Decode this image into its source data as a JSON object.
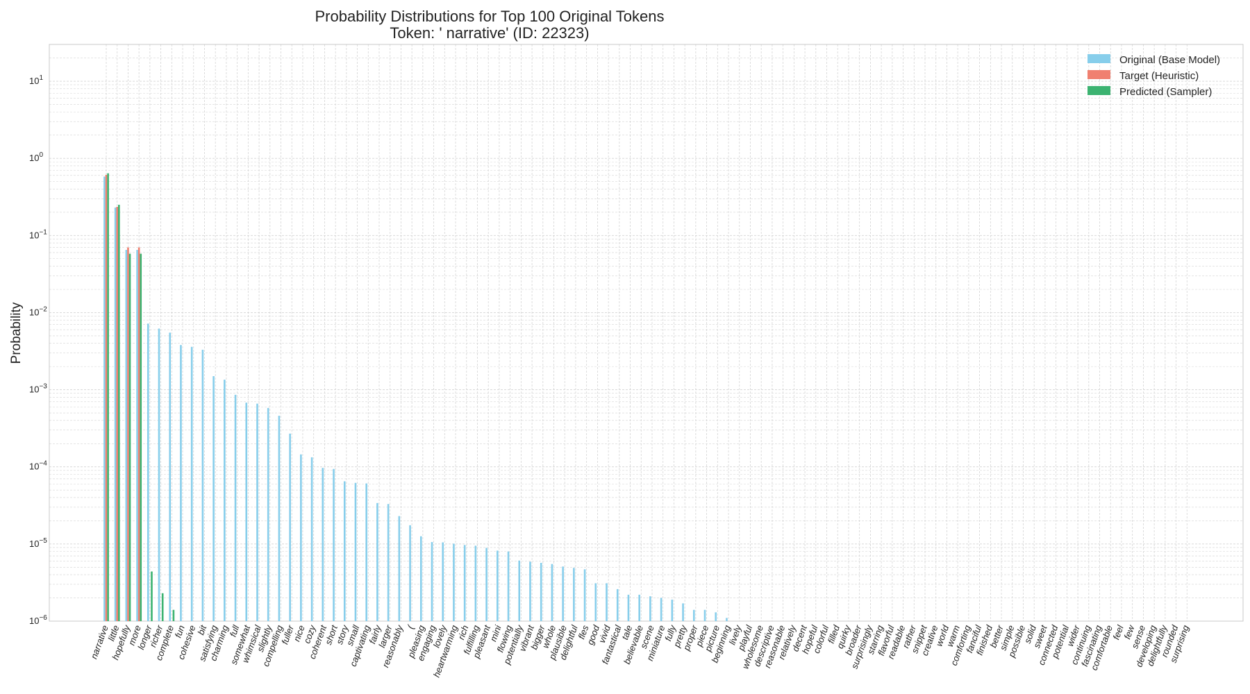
{
  "chart_data": {
    "type": "bar",
    "title": "Probability Distributions for Top 100 Original Tokens",
    "subtitle": "Token: ' narrative' (ID: 22323)",
    "xlabel": "",
    "ylabel": "Probability",
    "yscale": "log",
    "ylim": [
      1e-06,
      30
    ],
    "grid": true,
    "legend_position": "top-right",
    "y_ticks": [
      {
        "value": 1e-06,
        "base": "10",
        "exp": "−6"
      },
      {
        "value": 1e-05,
        "base": "10",
        "exp": "−5"
      },
      {
        "value": 0.0001,
        "base": "10",
        "exp": "−4"
      },
      {
        "value": 0.001,
        "base": "10",
        "exp": "−3"
      },
      {
        "value": 0.01,
        "base": "10",
        "exp": "−2"
      },
      {
        "value": 0.1,
        "base": "10",
        "exp": "−1"
      },
      {
        "value": 1,
        "base": "10",
        "exp": "0"
      },
      {
        "value": 10,
        "base": "10",
        "exp": "1"
      }
    ],
    "categories": [
      "narrative",
      "little",
      "hopefully",
      "more",
      "longer",
      "richer",
      "complete",
      "fun",
      "cohesive",
      "bit",
      "satisfying",
      "charming",
      "full",
      "somewhat",
      "whimsical",
      "slightly",
      "compelling",
      "fuller",
      "nice",
      "cozy",
      "coherent",
      "short",
      "story",
      "small",
      "captivating",
      "fairly",
      "larger",
      "reasonably",
      "(",
      "pleasing",
      "engaging",
      "lovely",
      "heartwarming",
      "rich",
      "fulfilling",
      "pleasant",
      "mini",
      "flowing",
      "potentially",
      "vibrant",
      "bigger",
      "whole",
      "plausible",
      "delightful",
      "fles",
      "good",
      "vivid",
      "fantastical",
      "tale",
      "believable",
      "scene",
      "miniature",
      "fully",
      "pretty",
      "proper",
      "piece",
      "picture",
      "beginning",
      "lively",
      "playful",
      "wholesome",
      "descriptive",
      "reasonable",
      "relatively",
      "decent",
      "hopeful",
      "colorful",
      "filled",
      "quirky",
      "broader",
      "surprisingly",
      "starring",
      "flavorful",
      "readable",
      "rather",
      "snippet",
      "creative",
      "world",
      "warm",
      "comforting",
      "fanciful",
      "finished",
      "better",
      "simple",
      "possible",
      "solid",
      "sweet",
      "connected",
      "potential",
      "wider",
      "continuing",
      "fascinating",
      "comfortable",
      "feel",
      "few",
      "sense",
      "developing",
      "delightfully",
      "rounded",
      "surprising"
    ],
    "series": [
      {
        "name": "Original (Base Model)",
        "color": "#87ceeb",
        "values": [
          0.58,
          0.23,
          0.065,
          0.065,
          0.0072,
          0.0062,
          0.0055,
          0.0038,
          0.0036,
          0.0033,
          0.0015,
          0.00135,
          0.00086,
          0.00068,
          0.00066,
          0.00058,
          0.00046,
          0.00027,
          0.000145,
          0.000133,
          9.7e-05,
          9.4e-05,
          6.5e-05,
          6.2e-05,
          6.1e-05,
          3.4e-05,
          3.3e-05,
          2.3e-05,
          1.75e-05,
          1.26e-05,
          1.06e-05,
          1.05e-05,
          1.01e-05,
          9.7e-06,
          9.5e-06,
          8.9e-06,
          8.2e-06,
          8e-06,
          6.1e-06,
          5.9e-06,
          5.7e-06,
          5.5e-06,
          5.1e-06,
          4.9e-06,
          4.7e-06,
          3.1e-06,
          3.1e-06,
          2.6e-06,
          2.2e-06,
          2.2e-06,
          2.1e-06,
          2e-06,
          1.9e-06,
          1.7e-06,
          1.4e-06,
          1.4e-06,
          1.3e-06,
          1.1e-06,
          0,
          0,
          0,
          0,
          0,
          0,
          0,
          0,
          0,
          0,
          0,
          0,
          0,
          0,
          0,
          0,
          0,
          0,
          0,
          0,
          0,
          0,
          0,
          0,
          0,
          0,
          0,
          0,
          0,
          0,
          0,
          0,
          0,
          0,
          0,
          0,
          0,
          0,
          0,
          0,
          0,
          0
        ]
      },
      {
        "name": "Target (Heuristic)",
        "color": "#f08070",
        "values": [
          0.61,
          0.235,
          0.07,
          0.07,
          0,
          0,
          0,
          0,
          0,
          0,
          0,
          0,
          0,
          0,
          0,
          0,
          0,
          0,
          0,
          0,
          0,
          0,
          0,
          0,
          0,
          0,
          0,
          0,
          0,
          0,
          0,
          0,
          0,
          0,
          0,
          0,
          0,
          0,
          0,
          0,
          0,
          0,
          0,
          0,
          0,
          0,
          0,
          0,
          0,
          0,
          0,
          0,
          0,
          0,
          0,
          0,
          0,
          0,
          0,
          0,
          0,
          0,
          0,
          0,
          0,
          0,
          0,
          0,
          0,
          0,
          0,
          0,
          0,
          0,
          0,
          0,
          0,
          0,
          0,
          0,
          0,
          0,
          0,
          0,
          0,
          0,
          0,
          0,
          0,
          0,
          0,
          0,
          0,
          0,
          0,
          0,
          0,
          0,
          0,
          0
        ]
      },
      {
        "name": "Predicted (Sampler)",
        "color": "#3cb371",
        "values": [
          0.64,
          0.25,
          0.058,
          0.058,
          4.4e-06,
          2.3e-06,
          1.4e-06,
          0,
          0,
          0,
          0,
          0,
          0,
          0,
          0,
          0,
          0,
          0,
          0,
          0,
          0,
          0,
          0,
          0,
          0,
          0,
          0,
          0,
          0,
          0,
          0,
          0,
          0,
          0,
          0,
          0,
          0,
          0,
          0,
          0,
          0,
          0,
          0,
          0,
          0,
          0,
          0,
          0,
          0,
          0,
          0,
          0,
          0,
          0,
          0,
          0,
          0,
          0,
          0,
          0,
          0,
          0,
          0,
          0,
          0,
          0,
          0,
          0,
          0,
          0,
          0,
          0,
          0,
          0,
          0,
          0,
          0,
          0,
          0,
          0,
          0,
          0,
          0,
          0,
          0,
          0,
          0,
          0,
          0,
          0,
          0,
          0,
          0,
          0,
          0,
          0,
          0,
          0,
          0,
          0
        ]
      }
    ]
  },
  "colors": {
    "grid": "#d4d4d4",
    "frame": "#c8c8c8",
    "text": "#222222"
  }
}
